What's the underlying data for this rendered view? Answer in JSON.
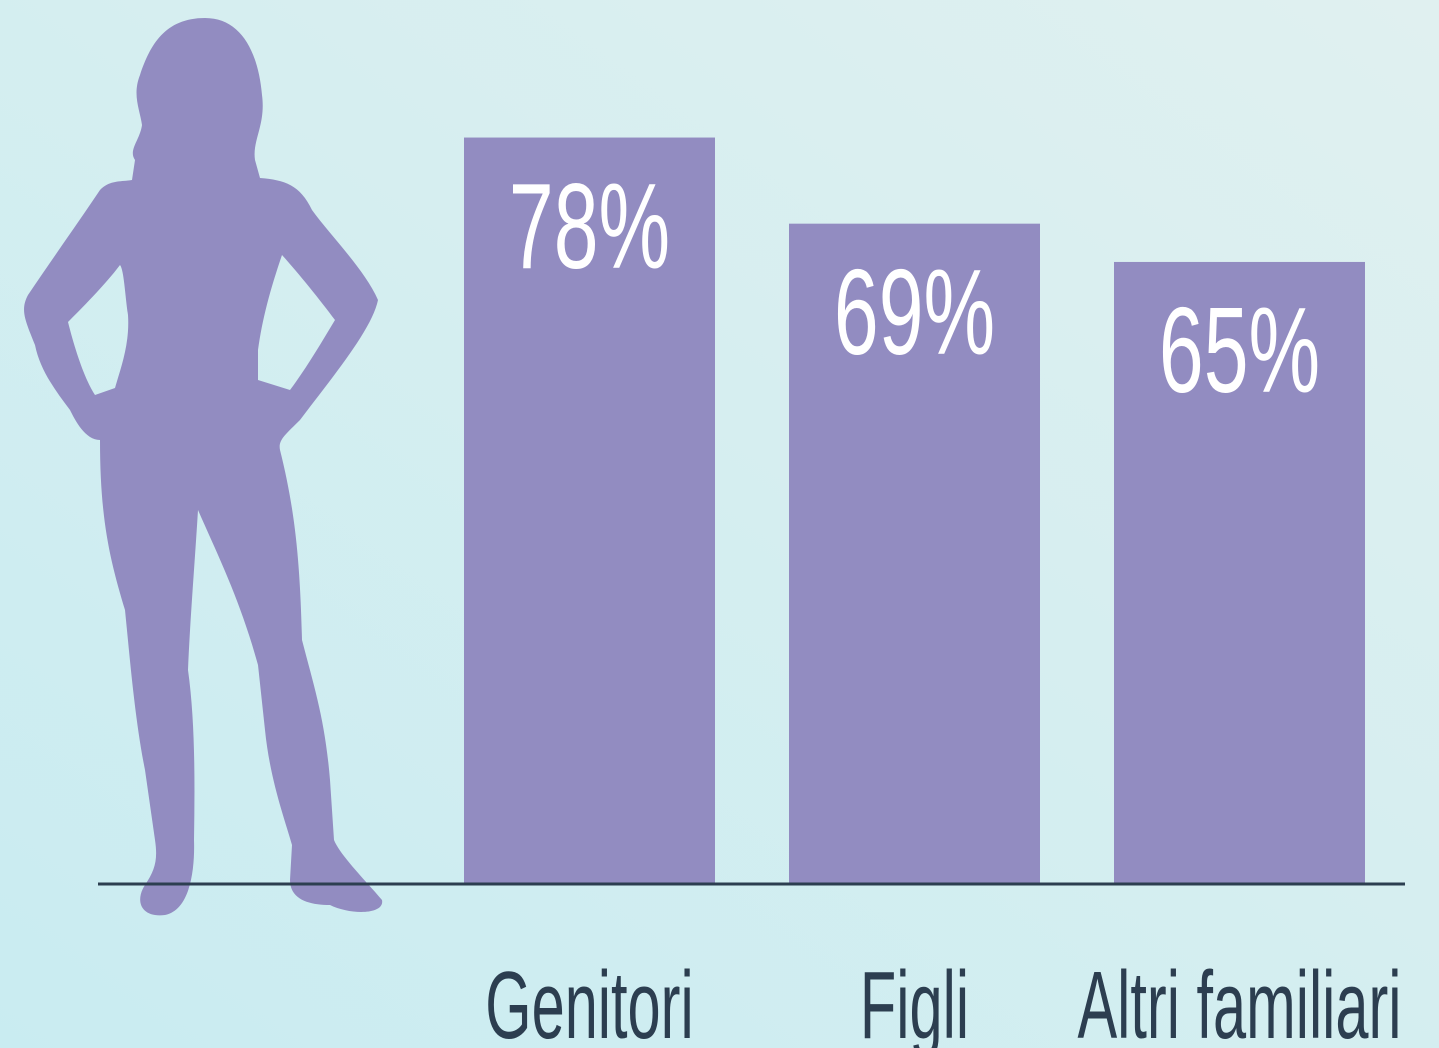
{
  "chart_data": {
    "type": "bar",
    "categories": [
      "Genitori",
      "Figli",
      "Altri familiari"
    ],
    "values": [
      78,
      69,
      65
    ],
    "value_labels": [
      "78%",
      "69%",
      "65%"
    ],
    "color": "#928cc1"
  }
}
